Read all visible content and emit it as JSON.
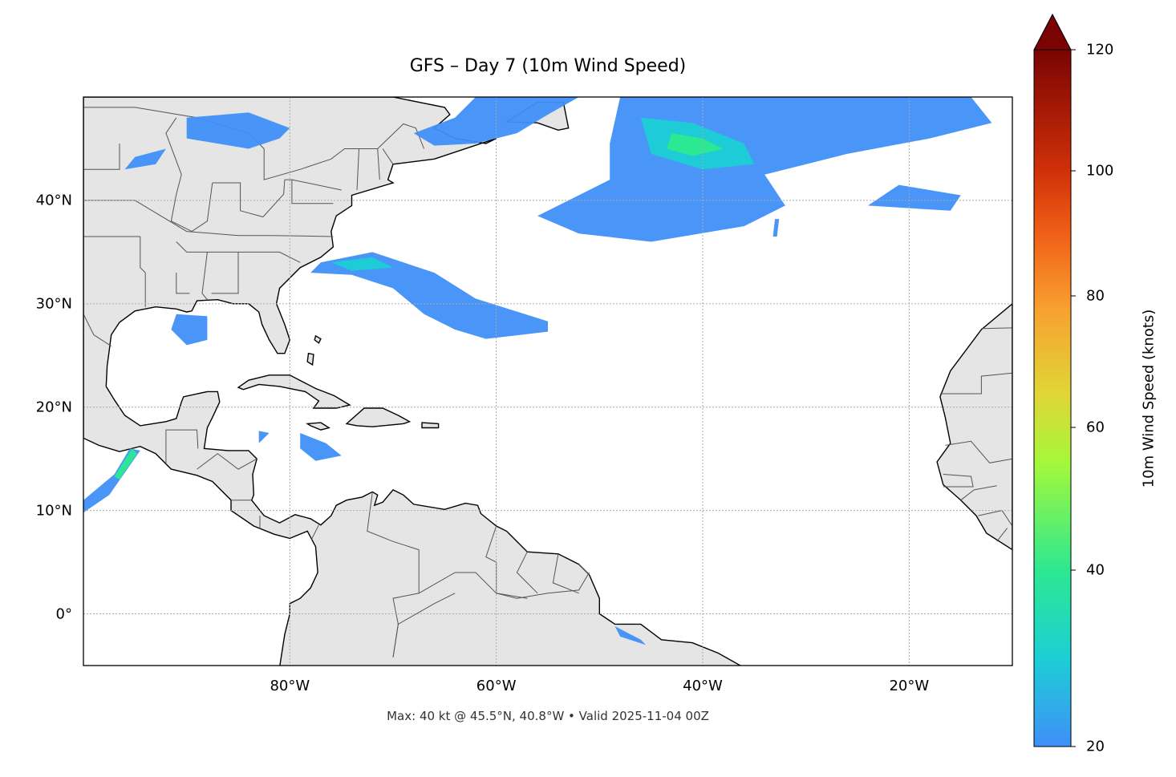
{
  "title": "GFS – Day 7 (10m Wind Speed)",
  "footer": "Max: 40 kt @ 45.5°N, 40.8°W • Valid 2025-11-04 00Z",
  "map": {
    "extent": {
      "lon_min": -100,
      "lon_max": -10,
      "lat_min": -5,
      "lat_max": 50
    },
    "gridlines": true,
    "lon_ticks": [
      {
        "value": -80,
        "label": "80°W"
      },
      {
        "value": -60,
        "label": "60°W"
      },
      {
        "value": -40,
        "label": "40°W"
      },
      {
        "value": -20,
        "label": "20°W"
      }
    ],
    "lat_ticks": [
      {
        "value": 40,
        "label": "40°N"
      },
      {
        "value": 30,
        "label": "30°N"
      },
      {
        "value": 20,
        "label": "20°N"
      },
      {
        "value": 10,
        "label": "10°N"
      },
      {
        "value": 0,
        "label": "0°"
      }
    ],
    "land_color": "#e5e5e5",
    "max_point": {
      "lat": 45.5,
      "lon": -40.8,
      "value_kt": 40
    }
  },
  "colorbar": {
    "label": "10m Wind Speed (knots)",
    "min": 20,
    "max": 120,
    "extend": "max",
    "ticks": [
      {
        "value": 20,
        "label": "20"
      },
      {
        "value": 40,
        "label": "40"
      },
      {
        "value": 60,
        "label": "60"
      },
      {
        "value": 80,
        "label": "80"
      },
      {
        "value": 100,
        "label": "100"
      },
      {
        "value": 120,
        "label": "120"
      }
    ],
    "colors": [
      "#3f8ff8",
      "#1ccfd5",
      "#2de890",
      "#a4f83a",
      "#e0d637",
      "#f8a030",
      "#f06018",
      "#d03008",
      "#7a0403"
    ]
  }
}
